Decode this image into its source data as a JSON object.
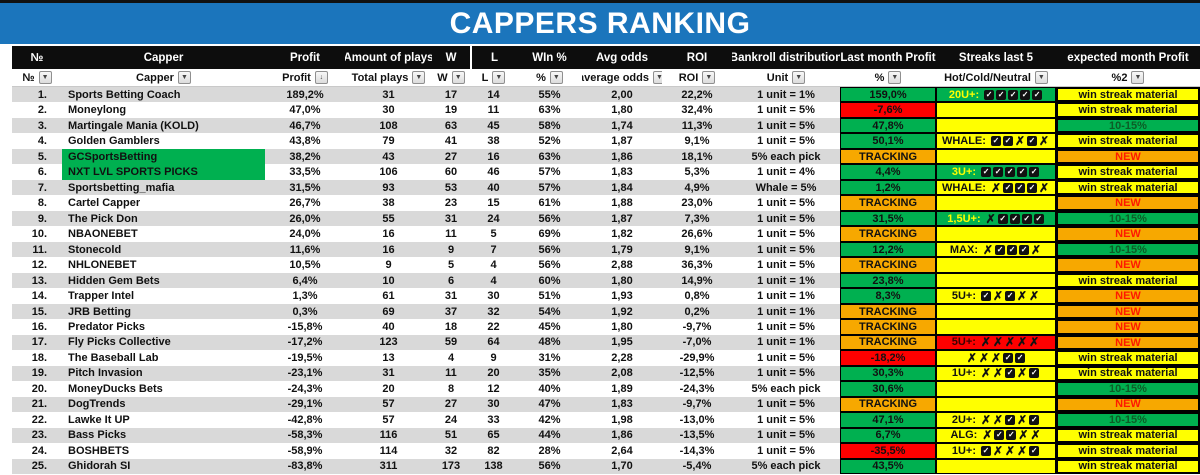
{
  "title": "CAPPERS RANKING",
  "columns": [
    {
      "label": "№",
      "filter": "№",
      "icon": "dropdown"
    },
    {
      "label": "Capper",
      "filter": "Capper",
      "icon": "dropdown"
    },
    {
      "label": "Profit",
      "filter": "Profit",
      "icon": "sort-desc"
    },
    {
      "label": "Amount of plays",
      "filter": "Total plays",
      "icon": "dropdown"
    },
    {
      "label": "W",
      "filter": "W",
      "icon": "dropdown"
    },
    {
      "label": "L",
      "filter": "L",
      "icon": "dropdown"
    },
    {
      "label": "WIn %",
      "filter": "%",
      "icon": "dropdown"
    },
    {
      "label": "Avg odds",
      "filter": "average odds",
      "icon": "dropdown"
    },
    {
      "label": "ROI",
      "filter": "ROI",
      "icon": "dropdown"
    },
    {
      "label": "Bankroll distribution",
      "filter": "Unit",
      "icon": "dropdown"
    },
    {
      "label": "Last month Profit",
      "filter": "%",
      "icon": "dropdown"
    },
    {
      "label": "Streaks last 5",
      "filter": "Hot/Cold/Neutral",
      "icon": "dropdown"
    },
    {
      "label": "expected month Profit",
      "filter": "%2",
      "icon": "dropdown"
    }
  ],
  "colors": {
    "title_bar_blue": "#1b75bc",
    "header_black": "#0d0d0d",
    "row_alt_gray": "#d9d9d9",
    "positive_green_text": "#21a453",
    "negative_red_text": "#ed2024",
    "cell_green": "#00b050",
    "cell_yellow": "#ffff00",
    "cell_orange": "#f7a800",
    "cell_red": "#fe0000"
  },
  "rows": [
    {
      "rank": "1.",
      "capper": "Sports Betting Coach",
      "capper_red": false,
      "capper_green_bg": false,
      "profit": "189,2%",
      "profit_neg": false,
      "plays": "31",
      "w": "17",
      "l": "14",
      "win": "55%",
      "win_neg": false,
      "odds": "2,00",
      "roi": "22,2%",
      "unit": "1 unit = 1%",
      "last": {
        "text": "159,0%",
        "bg": "green"
      },
      "streak": {
        "prefix": "20U+:",
        "marks": [
          "c",
          "c",
          "c",
          "c",
          "c"
        ],
        "bg": "green"
      },
      "expected": {
        "text": "win streak material",
        "bg": "yellow"
      }
    },
    {
      "rank": "2.",
      "capper": "Moneylong",
      "capper_red": false,
      "capper_green_bg": false,
      "profit": "47,0%",
      "profit_neg": false,
      "plays": "30",
      "w": "19",
      "l": "11",
      "win": "63%",
      "win_neg": false,
      "odds": "1,80",
      "roi": "32,4%",
      "unit": "1 unit = 5%",
      "last": {
        "text": "-7,6%",
        "bg": "red"
      },
      "streak": {
        "prefix": "",
        "marks": [],
        "bg": "yellow"
      },
      "expected": {
        "text": "win streak material",
        "bg": "yellow"
      }
    },
    {
      "rank": "3.",
      "capper": "Martingale Mania (KOLD)",
      "capper_red": false,
      "capper_green_bg": false,
      "profit": "46,7%",
      "profit_neg": false,
      "plays": "108",
      "w": "63",
      "l": "45",
      "win": "58%",
      "win_neg": false,
      "odds": "1,74",
      "roi": "11,3%",
      "unit": "1 unit = 5%",
      "last": {
        "text": "47,8%",
        "bg": "green"
      },
      "streak": {
        "prefix": "",
        "marks": [],
        "bg": "yellow"
      },
      "expected": {
        "text": "10-15%",
        "bg": "green"
      }
    },
    {
      "rank": "4.",
      "capper": "Golden Gamblers",
      "capper_red": false,
      "capper_green_bg": false,
      "profit": "43,8%",
      "profit_neg": false,
      "plays": "79",
      "w": "41",
      "l": "38",
      "win": "52%",
      "win_neg": false,
      "odds": "1,87",
      "roi": "9,1%",
      "unit": "1 unit = 5%",
      "last": {
        "text": "50,1%",
        "bg": "green"
      },
      "streak": {
        "prefix": "WHALE:",
        "marks": [
          "c",
          "c",
          "x",
          "c",
          "x"
        ],
        "bg": "yellow"
      },
      "expected": {
        "text": "win streak material",
        "bg": "yellow"
      }
    },
    {
      "rank": "5.",
      "capper": "GCSportsBetting",
      "capper_red": true,
      "capper_green_bg": true,
      "profit": "38,2%",
      "profit_neg": false,
      "plays": "43",
      "w": "27",
      "l": "16",
      "win": "63%",
      "win_neg": false,
      "odds": "1,86",
      "roi": "18,1%",
      "unit": "5% each pick",
      "last": {
        "text": "TRACKING",
        "bg": "orange"
      },
      "streak": {
        "prefix": "",
        "marks": [],
        "bg": "yellow"
      },
      "expected": {
        "text": "NEW",
        "bg": "orange"
      }
    },
    {
      "rank": "6.",
      "capper": "NXT LVL SPORTS PICKS",
      "capper_red": true,
      "capper_green_bg": true,
      "profit": "33,5%",
      "profit_neg": false,
      "plays": "106",
      "w": "60",
      "l": "46",
      "win": "57%",
      "win_neg": false,
      "odds": "1,83",
      "roi": "5,3%",
      "unit": "1 unit = 4%",
      "last": {
        "text": "4,4%",
        "bg": "green"
      },
      "streak": {
        "prefix": "3U+:",
        "marks": [
          "c",
          "c",
          "c",
          "c",
          "c"
        ],
        "bg": "green"
      },
      "expected": {
        "text": "win streak material",
        "bg": "yellow"
      }
    },
    {
      "rank": "7.",
      "capper": "Sportsbetting_mafia",
      "capper_red": false,
      "capper_green_bg": false,
      "profit": "31,5%",
      "profit_neg": false,
      "plays": "93",
      "w": "53",
      "l": "40",
      "win": "57%",
      "win_neg": false,
      "odds": "1,84",
      "roi": "4,9%",
      "unit": "Whale = 5%",
      "last": {
        "text": "1,2%",
        "bg": "green"
      },
      "streak": {
        "prefix": "WHALE:",
        "marks": [
          "x",
          "c",
          "c",
          "c",
          "x"
        ],
        "bg": "yellow"
      },
      "expected": {
        "text": "win streak material",
        "bg": "yellow"
      }
    },
    {
      "rank": "8.",
      "capper": "Cartel Capper",
      "capper_red": true,
      "capper_green_bg": false,
      "profit": "26,7%",
      "profit_neg": false,
      "plays": "38",
      "w": "23",
      "l": "15",
      "win": "61%",
      "win_neg": false,
      "odds": "1,88",
      "roi": "23,0%",
      "unit": "1 unit = 5%",
      "last": {
        "text": "TRACKING",
        "bg": "orange"
      },
      "streak": {
        "prefix": "",
        "marks": [],
        "bg": "yellow"
      },
      "expected": {
        "text": "NEW",
        "bg": "orange"
      }
    },
    {
      "rank": "9.",
      "capper": "The Pick Don",
      "capper_red": false,
      "capper_green_bg": false,
      "profit": "26,0%",
      "profit_neg": false,
      "plays": "55",
      "w": "31",
      "l": "24",
      "win": "56%",
      "win_neg": false,
      "odds": "1,87",
      "roi": "7,3%",
      "unit": "1 unit = 5%",
      "last": {
        "text": "31,5%",
        "bg": "green"
      },
      "streak": {
        "prefix": "1,5U+:",
        "marks": [
          "x",
          "c",
          "c",
          "c",
          "c"
        ],
        "bg": "green"
      },
      "expected": {
        "text": "10-15%",
        "bg": "green"
      }
    },
    {
      "rank": "10.",
      "capper": "NBAONEBET",
      "capper_red": true,
      "capper_green_bg": false,
      "profit": "24,0%",
      "profit_neg": false,
      "plays": "16",
      "w": "11",
      "l": "5",
      "win": "69%",
      "win_neg": false,
      "odds": "1,82",
      "roi": "26,6%",
      "unit": "1 unit = 5%",
      "last": {
        "text": "TRACKING",
        "bg": "orange"
      },
      "streak": {
        "prefix": "",
        "marks": [],
        "bg": "yellow"
      },
      "expected": {
        "text": "NEW",
        "bg": "orange"
      }
    },
    {
      "rank": "11.",
      "capper": "Stonecold",
      "capper_red": false,
      "capper_green_bg": false,
      "profit": "11,6%",
      "profit_neg": false,
      "plays": "16",
      "w": "9",
      "l": "7",
      "win": "56%",
      "win_neg": false,
      "odds": "1,79",
      "roi": "9,1%",
      "unit": "1 unit = 5%",
      "last": {
        "text": "12,2%",
        "bg": "green"
      },
      "streak": {
        "prefix": "MAX:",
        "marks": [
          "x",
          "c",
          "c",
          "c",
          "x"
        ],
        "bg": "yellow"
      },
      "expected": {
        "text": "10-15%",
        "bg": "green"
      }
    },
    {
      "rank": "12.",
      "capper": "NHLONEBET",
      "capper_red": true,
      "capper_green_bg": false,
      "profit": "10,5%",
      "profit_neg": false,
      "plays": "9",
      "w": "5",
      "l": "4",
      "win": "56%",
      "win_neg": false,
      "odds": "2,88",
      "roi": "36,3%",
      "unit": "1 unit = 5%",
      "last": {
        "text": "TRACKING",
        "bg": "orange"
      },
      "streak": {
        "prefix": "",
        "marks": [],
        "bg": "yellow"
      },
      "expected": {
        "text": "NEW",
        "bg": "orange"
      }
    },
    {
      "rank": "13.",
      "capper": "Hidden Gem Bets",
      "capper_red": false,
      "capper_green_bg": false,
      "profit": "6,4%",
      "profit_neg": false,
      "plays": "10",
      "w": "6",
      "l": "4",
      "win": "60%",
      "win_neg": false,
      "odds": "1,80",
      "roi": "14,9%",
      "unit": "1 unit = 1%",
      "last": {
        "text": "23,8%",
        "bg": "green"
      },
      "streak": {
        "prefix": "",
        "marks": [],
        "bg": "yellow"
      },
      "expected": {
        "text": "win streak material",
        "bg": "yellow"
      }
    },
    {
      "rank": "14.",
      "capper": "Trapper Intel",
      "capper_red": false,
      "capper_green_bg": false,
      "profit": "1,3%",
      "profit_neg": false,
      "plays": "61",
      "w": "31",
      "l": "30",
      "win": "51%",
      "win_neg": false,
      "odds": "1,93",
      "roi": "0,8%",
      "unit": "1 unit = 1%",
      "last": {
        "text": "8,3%",
        "bg": "green"
      },
      "streak": {
        "prefix": "5U+:",
        "marks": [
          "c",
          "x",
          "c",
          "x",
          "x"
        ],
        "bg": "yellow"
      },
      "expected": {
        "text": "NEW",
        "bg": "orange"
      }
    },
    {
      "rank": "15.",
      "capper": "JRB Betting",
      "capper_red": true,
      "capper_green_bg": false,
      "profit": "0,3%",
      "profit_neg": false,
      "plays": "69",
      "w": "37",
      "l": "32",
      "win": "54%",
      "win_neg": false,
      "odds": "1,92",
      "roi": "0,2%",
      "unit": "1 unit = 1%",
      "last": {
        "text": "TRACKING",
        "bg": "orange"
      },
      "streak": {
        "prefix": "",
        "marks": [],
        "bg": "yellow"
      },
      "expected": {
        "text": "NEW",
        "bg": "orange"
      }
    },
    {
      "rank": "16.",
      "capper": "Predator Picks",
      "capper_red": true,
      "capper_green_bg": false,
      "profit": "-15,8%",
      "profit_neg": true,
      "plays": "40",
      "w": "18",
      "l": "22",
      "win": "45%",
      "win_neg": true,
      "odds": "1,80",
      "roi": "-9,7%",
      "unit": "1 unit = 5%",
      "last": {
        "text": "TRACKING",
        "bg": "orange"
      },
      "streak": {
        "prefix": "",
        "marks": [],
        "bg": "yellow"
      },
      "expected": {
        "text": "NEW",
        "bg": "orange"
      }
    },
    {
      "rank": "17.",
      "capper": "Fly Picks Collective",
      "capper_red": true,
      "capper_green_bg": false,
      "profit": "-17,2%",
      "profit_neg": true,
      "plays": "123",
      "w": "59",
      "l": "64",
      "win": "48%",
      "win_neg": true,
      "odds": "1,95",
      "roi": "-7,0%",
      "unit": "1 unit = 1%",
      "last": {
        "text": "TRACKING",
        "bg": "orange"
      },
      "streak": {
        "prefix": "5U+:",
        "marks": [
          "x",
          "x",
          "x",
          "x",
          "x"
        ],
        "bg": "red"
      },
      "expected": {
        "text": "NEW",
        "bg": "orange"
      }
    },
    {
      "rank": "18.",
      "capper": "The Baseball Lab",
      "capper_red": false,
      "capper_green_bg": false,
      "profit": "-19,5%",
      "profit_neg": true,
      "plays": "13",
      "w": "4",
      "l": "9",
      "win": "31%",
      "win_neg": true,
      "odds": "2,28",
      "roi": "-29,9%",
      "unit": "1 unit = 5%",
      "last": {
        "text": "-18,2%",
        "bg": "red"
      },
      "streak": {
        "prefix": "",
        "marks": [
          "x",
          "x",
          "x",
          "c",
          "c"
        ],
        "bg": "yellow"
      },
      "expected": {
        "text": "win streak material",
        "bg": "yellow"
      }
    },
    {
      "rank": "19.",
      "capper": "Pitch Invasion",
      "capper_red": false,
      "capper_green_bg": false,
      "profit": "-23,1%",
      "profit_neg": true,
      "plays": "31",
      "w": "11",
      "l": "20",
      "win": "35%",
      "win_neg": true,
      "odds": "2,08",
      "roi": "-12,5%",
      "unit": "1 unit = 5%",
      "last": {
        "text": "30,3%",
        "bg": "green"
      },
      "streak": {
        "prefix": "1U+:",
        "marks": [
          "x",
          "x",
          "c",
          "x",
          "c"
        ],
        "bg": "yellow"
      },
      "expected": {
        "text": "win streak material",
        "bg": "yellow"
      }
    },
    {
      "rank": "20.",
      "capper": "MoneyDucks Bets",
      "capper_red": false,
      "capper_green_bg": false,
      "profit": "-24,3%",
      "profit_neg": true,
      "plays": "20",
      "w": "8",
      "l": "12",
      "win": "40%",
      "win_neg": true,
      "odds": "1,89",
      "roi": "-24,3%",
      "unit": "5% each pick",
      "last": {
        "text": "30,6%",
        "bg": "green"
      },
      "streak": {
        "prefix": "",
        "marks": [],
        "bg": "yellow"
      },
      "expected": {
        "text": "10-15%",
        "bg": "green"
      }
    },
    {
      "rank": "21.",
      "capper": "DogTrends",
      "capper_red": true,
      "capper_green_bg": false,
      "profit": "-29,1%",
      "profit_neg": true,
      "plays": "57",
      "w": "27",
      "l": "30",
      "win": "47%",
      "win_neg": true,
      "odds": "1,83",
      "roi": "-9,7%",
      "unit": "1 unit = 5%",
      "last": {
        "text": "TRACKING",
        "bg": "orange"
      },
      "streak": {
        "prefix": "",
        "marks": [],
        "bg": "yellow"
      },
      "expected": {
        "text": "NEW",
        "bg": "orange"
      }
    },
    {
      "rank": "22.",
      "capper": "Lawke It UP",
      "capper_red": false,
      "capper_green_bg": false,
      "profit": "-42,8%",
      "profit_neg": true,
      "plays": "57",
      "w": "24",
      "l": "33",
      "win": "42%",
      "win_neg": true,
      "odds": "1,98",
      "roi": "-13,0%",
      "unit": "1 unit = 5%",
      "last": {
        "text": "47,1%",
        "bg": "green"
      },
      "streak": {
        "prefix": "2U+:",
        "marks": [
          "x",
          "x",
          "c",
          "x",
          "c"
        ],
        "bg": "yellow"
      },
      "expected": {
        "text": "10-15%",
        "bg": "green"
      }
    },
    {
      "rank": "23.",
      "capper": "Bass Picks",
      "capper_red": false,
      "capper_green_bg": false,
      "profit": "-58,3%",
      "profit_neg": true,
      "plays": "116",
      "w": "51",
      "l": "65",
      "win": "44%",
      "win_neg": true,
      "odds": "1,86",
      "roi": "-13,5%",
      "unit": "1 unit = 5%",
      "last": {
        "text": "6,7%",
        "bg": "green"
      },
      "streak": {
        "prefix": "ALG:",
        "marks": [
          "x",
          "c",
          "c",
          "x",
          "x"
        ],
        "bg": "yellow"
      },
      "expected": {
        "text": "win streak material",
        "bg": "yellow"
      }
    },
    {
      "rank": "24.",
      "capper": "BOSHBETS",
      "capper_red": false,
      "capper_green_bg": false,
      "profit": "-58,9%",
      "profit_neg": true,
      "plays": "114",
      "w": "32",
      "l": "82",
      "win": "28%",
      "win_neg": true,
      "odds": "2,64",
      "roi": "-14,3%",
      "unit": "1 unit = 5%",
      "last": {
        "text": "-35,5%",
        "bg": "red"
      },
      "streak": {
        "prefix": "1U+:",
        "marks": [
          "c",
          "x",
          "x",
          "x",
          "c"
        ],
        "bg": "yellow"
      },
      "expected": {
        "text": "win streak material",
        "bg": "yellow"
      }
    },
    {
      "rank": "25.",
      "capper": "Ghidorah SI",
      "capper_red": false,
      "capper_green_bg": false,
      "profit": "-83,8%",
      "profit_neg": true,
      "plays": "311",
      "w": "173",
      "l": "138",
      "win": "56%",
      "win_neg": false,
      "odds": "1,70",
      "roi": "-5,4%",
      "unit": "5% each pick",
      "last": {
        "text": "43,5%",
        "bg": "green"
      },
      "streak": {
        "prefix": "",
        "marks": [],
        "bg": "yellow"
      },
      "expected": {
        "text": "win streak material",
        "bg": "yellow"
      }
    }
  ]
}
